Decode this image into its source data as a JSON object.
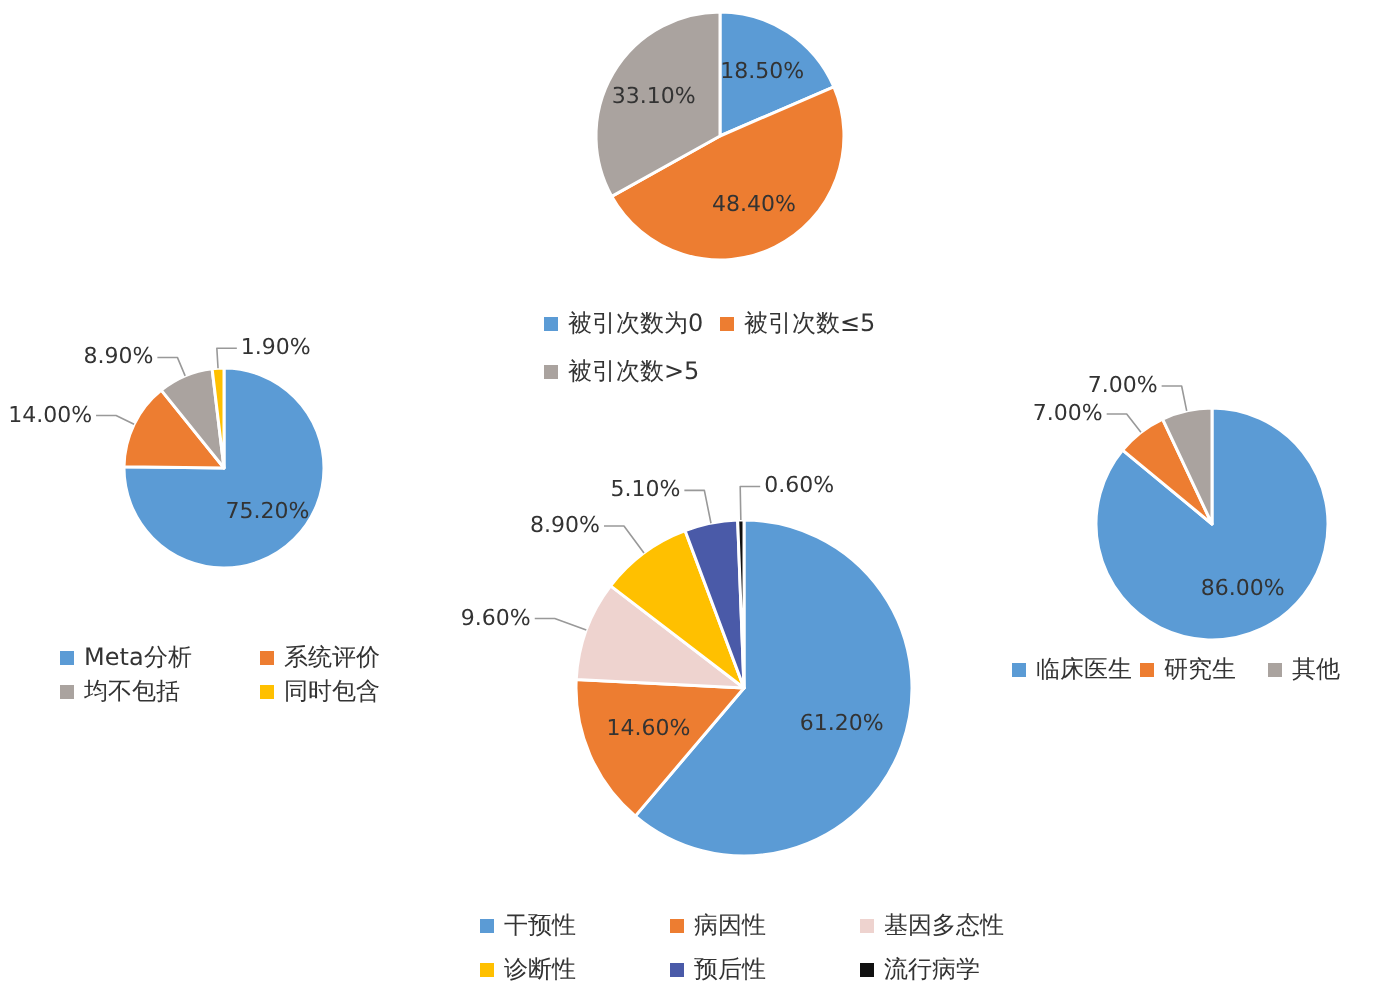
{
  "chart_data": [
    {
      "type": "pie",
      "categories": [
        "被引次数为0",
        "被引次数≤5",
        "被引次数>5"
      ],
      "values": [
        18.5,
        48.4,
        33.1
      ],
      "value_labels": [
        "18.50%",
        "48.40%",
        "33.10%"
      ],
      "colors": [
        "#5b9bd5",
        "#ed7d31",
        "#aaa39f"
      ],
      "legend": "bottom"
    },
    {
      "type": "pie",
      "categories": [
        "Meta分析",
        "系统评价",
        "均不包括",
        "同时包含"
      ],
      "values": [
        75.2,
        14.0,
        8.9,
        1.9
      ],
      "value_labels": [
        "75.20%",
        "14.00%",
        "8.90%",
        "1.90%"
      ],
      "colors": [
        "#5b9bd5",
        "#ed7d31",
        "#aaa39f",
        "#ffc000"
      ],
      "legend": "bottom"
    },
    {
      "type": "pie",
      "categories": [
        "干预性",
        "病因性",
        "基因多态性",
        "诊断性",
        "预后性",
        "流行病学"
      ],
      "values": [
        61.2,
        14.6,
        9.6,
        8.9,
        5.1,
        0.6
      ],
      "value_labels": [
        "61.20%",
        "14.60%",
        "9.60%",
        "8.90%",
        "5.10%",
        "0.60%"
      ],
      "colors": [
        "#5b9bd5",
        "#ed7d31",
        "#eed3cf",
        "#ffc000",
        "#4a5aa8",
        "#111111"
      ],
      "legend": "bottom"
    },
    {
      "type": "pie",
      "categories": [
        "临床医生",
        "研究生",
        "其他"
      ],
      "values": [
        86.0,
        7.0,
        7.0
      ],
      "value_labels": [
        "86.00%",
        "7.00%",
        "7.00%"
      ],
      "colors": [
        "#5b9bd5",
        "#ed7d31",
        "#aaa39f"
      ],
      "legend": "bottom"
    }
  ]
}
